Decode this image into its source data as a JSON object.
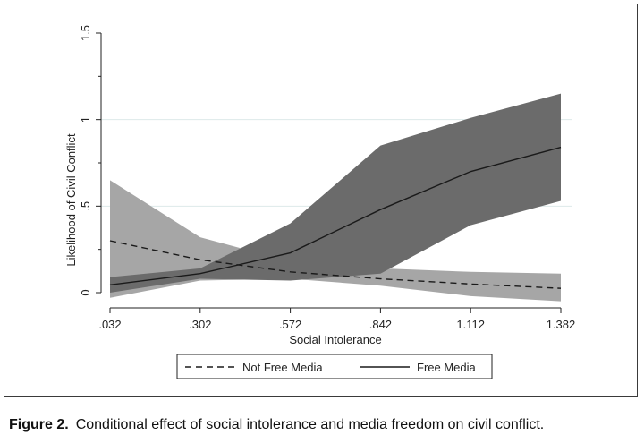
{
  "chart_data": {
    "type": "line",
    "title": "",
    "xlabel": "Social Intolerance",
    "ylabel": "Likelihood of Civil Conflict",
    "x": [
      0.032,
      0.302,
      0.572,
      0.842,
      1.112,
      1.382
    ],
    "x_tick_labels": [
      ".032",
      ".302",
      ".572",
      ".842",
      "1.112",
      "1.382"
    ],
    "y_ticks": [
      0,
      0.5,
      1,
      1.5
    ],
    "y_tick_labels": [
      "0",
      ".5",
      "1",
      "1.5"
    ],
    "ylim": [
      0,
      1.5
    ],
    "grid": true,
    "legend_position": "bottom",
    "series": [
      {
        "name": "Not Free Media",
        "style": "dashed",
        "values": [
          0.3,
          0.19,
          0.12,
          0.08,
          0.05,
          0.025
        ],
        "ci_lower": [
          -0.03,
          0.07,
          0.08,
          0.04,
          -0.02,
          -0.05
        ],
        "ci_upper": [
          0.65,
          0.32,
          0.18,
          0.14,
          0.12,
          0.11
        ],
        "band_color": "#a6a6a6"
      },
      {
        "name": "Free Media",
        "style": "solid",
        "values": [
          0.045,
          0.11,
          0.23,
          0.48,
          0.7,
          0.84
        ],
        "ci_lower": [
          0.0,
          0.08,
          0.07,
          0.11,
          0.39,
          0.53
        ],
        "ci_upper": [
          0.09,
          0.14,
          0.4,
          0.85,
          1.01,
          1.15
        ],
        "band_color": "#6b6b6b"
      }
    ]
  },
  "caption": {
    "label": "Figure 2.",
    "text": "Conditional effect of social intolerance and media freedom on civil conflict."
  }
}
